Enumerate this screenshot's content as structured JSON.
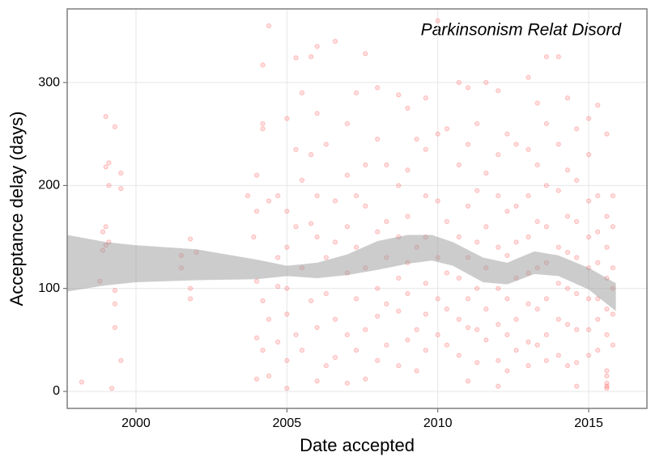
{
  "chart_data": {
    "type": "scatter",
    "annotation": "Parkinsonism Relat Disord",
    "x_label": "Date accepted",
    "y_label": "Acceptance delay (days)",
    "xlim": [
      1997.72,
      2016.93
    ],
    "ylim": [
      -16.5,
      371.5
    ],
    "xticks": [
      2000,
      2005,
      2010,
      2015
    ],
    "yticks": [
      0,
      100,
      200,
      300
    ],
    "grid": true,
    "color": "#ff0000",
    "x": [
      1998.2,
      1998.8,
      1998.9,
      1998.9,
      1999.0,
      1999.0,
      1999.0,
      1999.0,
      1999.1,
      1999.1,
      1999.1,
      1999.2,
      1999.3,
      1999.3,
      1999.3,
      1999.3,
      1999.5,
      1999.5,
      1999.5,
      2001.5,
      2001.5,
      2001.8,
      2001.8,
      2001.8,
      2002.0,
      2003.7,
      2003.9,
      2004.0,
      2004.0,
      2004.0,
      2004.0,
      2004.0,
      2004.2,
      2004.2,
      2004.2,
      2004.2,
      2004.2,
      2004.4,
      2004.4,
      2004.4,
      2004.4,
      2004.7,
      2004.7,
      2004.7,
      2004.7,
      2005.0,
      2005.0,
      2005.0,
      2005.0,
      2005.0,
      2005.0,
      2005.0,
      2005.3,
      2005.3,
      2005.3,
      2005.3,
      2005.5,
      2005.5,
      2005.5,
      2005.5,
      2005.8,
      2005.8,
      2005.8,
      2005.8,
      2006.0,
      2006.0,
      2006.0,
      2006.0,
      2006.0,
      2006.0,
      2006.3,
      2006.3,
      2006.3,
      2006.3,
      2006.6,
      2006.6,
      2006.6,
      2006.6,
      2006.6,
      2007.0,
      2007.0,
      2007.0,
      2007.0,
      2007.0,
      2007.0,
      2007.3,
      2007.3,
      2007.3,
      2007.3,
      2007.3,
      2007.6,
      2007.6,
      2007.6,
      2007.6,
      2007.6,
      2007.6,
      2008.0,
      2008.0,
      2008.0,
      2008.0,
      2008.0,
      2008.0,
      2008.3,
      2008.3,
      2008.3,
      2008.3,
      2008.3,
      2008.7,
      2008.7,
      2008.7,
      2008.7,
      2008.7,
      2008.7,
      2009.0,
      2009.0,
      2009.0,
      2009.0,
      2009.0,
      2009.0,
      2009.3,
      2009.3,
      2009.3,
      2009.3,
      2009.6,
      2009.6,
      2009.6,
      2009.6,
      2009.6,
      2009.6,
      2009.6,
      2010.0,
      2010.0,
      2010.0,
      2010.0,
      2010.0,
      2010.0,
      2010.3,
      2010.3,
      2010.3,
      2010.3,
      2010.3,
      2010.7,
      2010.7,
      2010.7,
      2010.7,
      2010.7,
      2010.7,
      2011.0,
      2011.0,
      2011.0,
      2011.0,
      2011.0,
      2011.0,
      2011.0,
      2011.3,
      2011.3,
      2011.3,
      2011.3,
      2011.3,
      2011.3,
      2011.6,
      2011.6,
      2011.6,
      2011.6,
      2011.6,
      2011.6,
      2012.0,
      2012.0,
      2012.0,
      2012.0,
      2012.0,
      2012.0,
      2012.0,
      2012.0,
      2012.3,
      2012.3,
      2012.3,
      2012.3,
      2012.3,
      2012.3,
      2012.6,
      2012.6,
      2012.6,
      2012.6,
      2012.6,
      2012.6,
      2013.0,
      2013.0,
      2013.0,
      2013.0,
      2013.0,
      2013.0,
      2013.0,
      2013.0,
      2013.3,
      2013.3,
      2013.3,
      2013.3,
      2013.3,
      2013.3,
      2013.6,
      2013.6,
      2013.6,
      2013.6,
      2013.6,
      2013.6,
      2013.6,
      2013.6,
      2014.0,
      2014.0,
      2014.0,
      2014.0,
      2014.0,
      2014.0,
      2014.0,
      2014.3,
      2014.3,
      2014.3,
      2014.3,
      2014.3,
      2014.3,
      2014.3,
      2014.6,
      2014.6,
      2014.6,
      2014.6,
      2014.6,
      2014.6,
      2014.6,
      2014.6,
      2015.0,
      2015.0,
      2015.0,
      2015.0,
      2015.0,
      2015.0,
      2015.0,
      2015.0,
      2015.3,
      2015.3,
      2015.3,
      2015.3,
      2015.3,
      2015.3,
      2015.3,
      2015.6,
      2015.6,
      2015.6,
      2015.6,
      2015.6,
      2015.6,
      2015.6,
      2015.6,
      2015.6,
      2015.6,
      2015.6,
      2015.8,
      2015.8,
      2015.8,
      2015.8,
      2015.8,
      2015.8
    ],
    "values": [
      9,
      107,
      155,
      137,
      267,
      218,
      142,
      160,
      200,
      222,
      145,
      3,
      98,
      62,
      257,
      85,
      212,
      197,
      30,
      120,
      132,
      148,
      100,
      90,
      135,
      190,
      150,
      210,
      175,
      107,
      12,
      52,
      317,
      260,
      255,
      88,
      40,
      355,
      185,
      70,
      15,
      190,
      130,
      102,
      48,
      265,
      175,
      140,
      100,
      75,
      3,
      30,
      324,
      235,
      160,
      55,
      290,
      205,
      120,
      40,
      325,
      230,
      163,
      88,
      335,
      270,
      190,
      150,
      62,
      10,
      240,
      130,
      95,
      25,
      340,
      185,
      145,
      70,
      33,
      260,
      210,
      160,
      115,
      55,
      8,
      290,
      190,
      140,
      90,
      40,
      328,
      220,
      180,
      120,
      60,
      12,
      295,
      245,
      155,
      100,
      73,
      30,
      220,
      165,
      130,
      85,
      45,
      288,
      200,
      150,
      110,
      78,
      25,
      275,
      215,
      170,
      125,
      95,
      50,
      245,
      140,
      60,
      20,
      285,
      235,
      190,
      150,
      105,
      75,
      40,
      360,
      250,
      185,
      130,
      90,
      55,
      255,
      165,
      115,
      80,
      45,
      300,
      220,
      150,
      110,
      70,
      35,
      295,
      240,
      180,
      130,
      90,
      62,
      10,
      260,
      195,
      145,
      100,
      60,
      28,
      300,
      212,
      160,
      120,
      80,
      50,
      292,
      230,
      190,
      140,
      100,
      65,
      30,
      5,
      250,
      175,
      132,
      90,
      55,
      20,
      240,
      180,
      145,
      110,
      70,
      40,
      305,
      235,
      190,
      150,
      115,
      85,
      48,
      25,
      280,
      220,
      165,
      120,
      80,
      45,
      325,
      260,
      200,
      160,
      125,
      90,
      55,
      30,
      325,
      240,
      195,
      140,
      105,
      70,
      35,
      285,
      215,
      170,
      135,
      100,
      65,
      25,
      255,
      205,
      165,
      130,
      95,
      60,
      28,
      5,
      265,
      230,
      185,
      150,
      120,
      90,
      60,
      35,
      278,
      190,
      155,
      125,
      90,
      70,
      40,
      250,
      170,
      140,
      110,
      80,
      55,
      20,
      3,
      5,
      8,
      15,
      190,
      160,
      120,
      100,
      75,
      45
    ],
    "band": {
      "color": "#999999",
      "x": [
        1997.72,
        1999,
        2000,
        2002,
        2004,
        2005,
        2006,
        2007,
        2008,
        2009,
        2009.8,
        2010.5,
        2011.5,
        2012.3,
        2013.2,
        2014,
        2015,
        2015.9
      ],
      "lower": [
        97,
        103,
        106,
        108,
        109,
        112,
        110,
        113,
        118,
        124,
        127,
        122,
        106,
        104,
        114,
        112,
        99,
        78
      ],
      "upper": [
        152,
        145,
        142,
        138,
        128,
        122,
        125,
        133,
        146,
        152,
        152,
        145,
        130,
        125,
        136,
        132,
        120,
        105
      ]
    }
  }
}
